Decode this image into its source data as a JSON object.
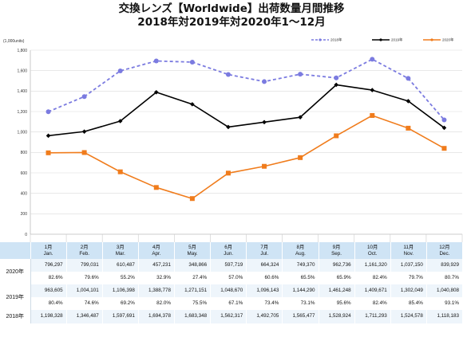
{
  "title": {
    "line1": "交換レンズ【Worldwide】出荷数量月間推移",
    "line2": "2018年対2019年対2020年1～12月"
  },
  "chart_data": {
    "type": "line",
    "unit_label": "(1,000units)",
    "ylim": [
      0,
      1800
    ],
    "yticks": [
      "0",
      "200",
      "400",
      "600",
      "800",
      "1,000",
      "1,200",
      "1,400",
      "1,600",
      "1,800"
    ],
    "grid": true,
    "legend_position": "top-right",
    "categories": [
      {
        "top": "1月",
        "bottom": "Jan."
      },
      {
        "top": "2月",
        "bottom": "Feb."
      },
      {
        "top": "3月",
        "bottom": "Mar."
      },
      {
        "top": "4月",
        "bottom": "Apr."
      },
      {
        "top": "5月",
        "bottom": "May."
      },
      {
        "top": "6月",
        "bottom": "Jun."
      },
      {
        "top": "7月",
        "bottom": "Jul."
      },
      {
        "top": "8月",
        "bottom": "Aug."
      },
      {
        "top": "9月",
        "bottom": "Sep."
      },
      {
        "top": "10月",
        "bottom": "Oct."
      },
      {
        "top": "11月",
        "bottom": "Nov."
      },
      {
        "top": "12月",
        "bottom": "Dec."
      }
    ],
    "series": [
      {
        "name": "2018年",
        "table_label": "2018年",
        "color": "#7b7be0",
        "style": "dashed",
        "values": [
          1198.328,
          1346.487,
          1597.691,
          1694.378,
          1683.348,
          1562.317,
          1492.705,
          1565.477,
          1528.924,
          1711.293,
          1524.578,
          1118.183
        ],
        "display_values": [
          "1,198,328",
          "1,346,487",
          "1,597,691",
          "1,694,378",
          "1,683,348",
          "1,562,317",
          "1,492,705",
          "1,565,477",
          "1,528,924",
          "1,711,293",
          "1,524,578",
          "1,118,183"
        ]
      },
      {
        "name": "2019年",
        "table_label": "2019年",
        "color": "#000000",
        "style": "solid",
        "values": [
          963.605,
          1004.101,
          1106.398,
          1388.778,
          1271.151,
          1048.67,
          1096.143,
          1144.29,
          1461.248,
          1409.671,
          1302.049,
          1040.808
        ],
        "display_values": [
          "963,605",
          "1,004,101",
          "1,106,398",
          "1,388,778",
          "1,271,151",
          "1,048,670",
          "1,096,143",
          "1,144,290",
          "1,461,248",
          "1,409,671",
          "1,302,049",
          "1,040,808"
        ],
        "ratios": [
          "80.4%",
          "74.6%",
          "69.2%",
          "82.0%",
          "75.5%",
          "67.1%",
          "73.4%",
          "73.1%",
          "95.6%",
          "82.4%",
          "85.4%",
          "93.1%"
        ]
      },
      {
        "name": "2020年",
        "table_label": "2020年",
        "color": "#f07c1c",
        "style": "solid",
        "values": [
          796.297,
          799.031,
          610.487,
          457.231,
          348.866,
          597.719,
          664.324,
          749.37,
          962.736,
          1161.32,
          1037.15,
          839.929
        ],
        "display_values": [
          "796,297",
          "799,031",
          "610,487",
          "457,231",
          "348,866",
          "597,719",
          "664,324",
          "749,370",
          "962,736",
          "1,161,320",
          "1,037,150",
          "839,929"
        ],
        "ratios": [
          "82.6%",
          "79.6%",
          "55.2%",
          "32.9%",
          "27.4%",
          "57.0%",
          "60.6%",
          "65.5%",
          "65.9%",
          "82.4%",
          "79.7%",
          "80.7%"
        ]
      }
    ]
  }
}
